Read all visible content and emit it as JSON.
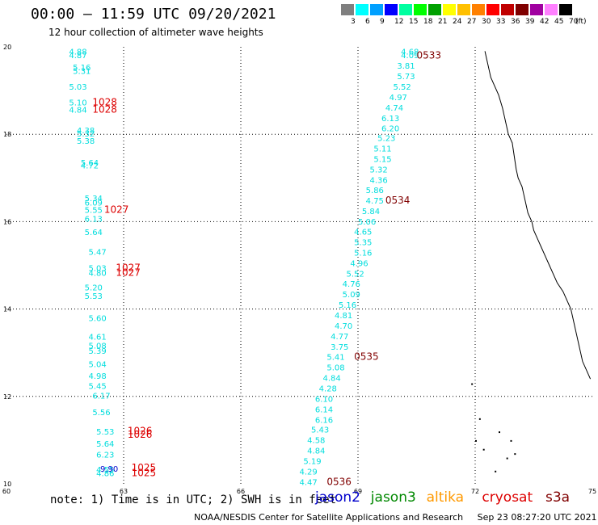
{
  "header": {
    "title": "00:00 – 11:59 UTC 09/20/2021",
    "subtitle": "12 hour collection of altimeter wave heights"
  },
  "color_scale": {
    "unit": "(ft)",
    "labels": [
      "3",
      "6",
      "9",
      "12",
      "15",
      "18",
      "21",
      "24",
      "27",
      "30",
      "33",
      "36",
      "39",
      "42",
      "45",
      "70"
    ],
    "colors": [
      "#7f7f7f",
      "#00ffff",
      "#00a0ff",
      "#0000ff",
      "#00ffa0",
      "#00ff00",
      "#00a000",
      "#ffff00",
      "#ffc000",
      "#ff8000",
      "#ff0000",
      "#c00000",
      "#800000",
      "#a000a0",
      "#ff80ff",
      "#000000"
    ]
  },
  "map": {
    "lon_ticks": [
      "60",
      "63",
      "66",
      "69",
      "72",
      "75"
    ],
    "lat_ticks": [
      "20",
      "18",
      "16",
      "14",
      "12",
      "10"
    ],
    "bounds": {
      "lon": [
        60,
        75
      ],
      "lat": [
        10,
        20
      ]
    }
  },
  "tracks": [
    {
      "satellite": "cryosat",
      "color": "#00dddd",
      "labels_color": "#dd0000",
      "points": [
        {
          "lon": 61.6,
          "lat": 19.82,
          "swh": "4.88"
        },
        {
          "lon": 61.6,
          "lat": 19.74,
          "swh": "4.87"
        },
        {
          "lon": 61.7,
          "lat": 19.46,
          "swh": "5.16"
        },
        {
          "lon": 61.7,
          "lat": 19.38,
          "swh": "5.31"
        },
        {
          "lon": 61.6,
          "lat": 19.02,
          "swh": "5.03"
        },
        {
          "lon": 61.6,
          "lat": 18.66,
          "swh": "5.10"
        },
        {
          "lon": 61.6,
          "lat": 18.49,
          "swh": "4.84"
        },
        {
          "lon": 61.8,
          "lat": 18.02,
          "swh": "4.38"
        },
        {
          "lon": 61.8,
          "lat": 17.95,
          "swh": "5.32"
        },
        {
          "lon": 61.8,
          "lat": 17.78,
          "swh": "5.38"
        },
        {
          "lon": 61.9,
          "lat": 17.28,
          "swh": "5.64"
        },
        {
          "lon": 61.9,
          "lat": 17.22,
          "swh": "4.72"
        },
        {
          "lon": 62.0,
          "lat": 16.47,
          "swh": "5.34"
        },
        {
          "lon": 62.0,
          "lat": 16.37,
          "swh": "6.09"
        },
        {
          "lon": 62.0,
          "lat": 16.2,
          "swh": "5.55"
        },
        {
          "lon": 62.0,
          "lat": 16.0,
          "swh": "6.13"
        },
        {
          "lon": 62.0,
          "lat": 15.69,
          "swh": "5.64"
        },
        {
          "lon": 62.1,
          "lat": 15.24,
          "swh": "5.47"
        },
        {
          "lon": 62.1,
          "lat": 14.87,
          "swh": "5.03"
        },
        {
          "lon": 62.1,
          "lat": 14.76,
          "swh": "4.80"
        },
        {
          "lon": 62.0,
          "lat": 14.43,
          "swh": "5.20"
        },
        {
          "lon": 62.0,
          "lat": 14.23,
          "swh": "5.53"
        },
        {
          "lon": 62.1,
          "lat": 13.72,
          "swh": "5.60"
        },
        {
          "lon": 62.1,
          "lat": 13.3,
          "swh": "4.61"
        },
        {
          "lon": 62.1,
          "lat": 13.1,
          "swh": "5.08"
        },
        {
          "lon": 62.1,
          "lat": 12.98,
          "swh": "5.39"
        },
        {
          "lon": 62.1,
          "lat": 12.67,
          "swh": "5.04"
        },
        {
          "lon": 62.1,
          "lat": 12.4,
          "swh": "4.98"
        },
        {
          "lon": 62.1,
          "lat": 12.17,
          "swh": "5.45"
        },
        {
          "lon": 62.2,
          "lat": 11.95,
          "swh": "6.17"
        },
        {
          "lon": 62.2,
          "lat": 11.57,
          "swh": "5.56"
        },
        {
          "lon": 62.3,
          "lat": 11.13,
          "swh": "5.53"
        },
        {
          "lon": 62.3,
          "lat": 10.85,
          "swh": "5.64"
        },
        {
          "lon": 62.3,
          "lat": 10.6,
          "swh": "6.23"
        },
        {
          "lon": 62.3,
          "lat": 10.26,
          "swh": "4.55"
        },
        {
          "lon": 62.3,
          "lat": 10.18,
          "swh": "4.86"
        }
      ],
      "time_labels": [
        {
          "lon": 62.2,
          "lat": 18.66,
          "text": "1028"
        },
        {
          "lon": 62.2,
          "lat": 18.49,
          "text": "1028"
        },
        {
          "lon": 62.5,
          "lat": 16.2,
          "text": "1027"
        },
        {
          "lon": 62.8,
          "lat": 14.87,
          "text": "1027"
        },
        {
          "lon": 62.8,
          "lat": 14.76,
          "text": "1027"
        },
        {
          "lon": 63.1,
          "lat": 11.14,
          "text": "1026"
        },
        {
          "lon": 63.1,
          "lat": 11.05,
          "text": "1026"
        },
        {
          "lon": 63.2,
          "lat": 10.3,
          "text": "1025"
        },
        {
          "lon": 63.2,
          "lat": 10.18,
          "text": "1025"
        }
      ]
    },
    {
      "satellite": "s3a",
      "color": "#00dddd",
      "labels_color": "#800000",
      "points": [
        {
          "lon": 70.1,
          "lat": 19.82,
          "swh": "4.68"
        },
        {
          "lon": 70.1,
          "lat": 19.74,
          "swh": "4.09"
        },
        {
          "lon": 70.0,
          "lat": 19.5,
          "swh": "3.81"
        },
        {
          "lon": 70.0,
          "lat": 19.26,
          "swh": "5.73"
        },
        {
          "lon": 69.9,
          "lat": 19.02,
          "swh": "5.52"
        },
        {
          "lon": 69.8,
          "lat": 18.78,
          "swh": "4.97"
        },
        {
          "lon": 69.7,
          "lat": 18.54,
          "swh": "4.74"
        },
        {
          "lon": 69.6,
          "lat": 18.3,
          "swh": "6.13"
        },
        {
          "lon": 69.6,
          "lat": 18.07,
          "swh": "6.20"
        },
        {
          "lon": 69.5,
          "lat": 17.85,
          "swh": "5.23"
        },
        {
          "lon": 69.4,
          "lat": 17.61,
          "swh": "5.11"
        },
        {
          "lon": 69.4,
          "lat": 17.37,
          "swh": "5.15"
        },
        {
          "lon": 69.3,
          "lat": 17.13,
          "swh": "5.32"
        },
        {
          "lon": 69.3,
          "lat": 16.89,
          "swh": "4.36"
        },
        {
          "lon": 69.2,
          "lat": 16.65,
          "swh": "5.86"
        },
        {
          "lon": 69.2,
          "lat": 16.41,
          "swh": "4.75"
        },
        {
          "lon": 69.1,
          "lat": 16.17,
          "swh": "5.84"
        },
        {
          "lon": 69.0,
          "lat": 15.93,
          "swh": "5.06"
        },
        {
          "lon": 68.9,
          "lat": 15.7,
          "swh": "4.65"
        },
        {
          "lon": 68.9,
          "lat": 15.46,
          "swh": "5.35"
        },
        {
          "lon": 68.9,
          "lat": 15.22,
          "swh": "5.16"
        },
        {
          "lon": 68.8,
          "lat": 14.98,
          "swh": "4.96"
        },
        {
          "lon": 68.7,
          "lat": 14.74,
          "swh": "5.52"
        },
        {
          "lon": 68.6,
          "lat": 14.51,
          "swh": "4.76"
        },
        {
          "lon": 68.6,
          "lat": 14.27,
          "swh": "5.09"
        },
        {
          "lon": 68.5,
          "lat": 14.03,
          "swh": "5.16"
        },
        {
          "lon": 68.4,
          "lat": 13.79,
          "swh": "4.81"
        },
        {
          "lon": 68.4,
          "lat": 13.55,
          "swh": "4.70"
        },
        {
          "lon": 68.3,
          "lat": 13.31,
          "swh": "4.77"
        },
        {
          "lon": 68.3,
          "lat": 13.07,
          "swh": "3.75"
        },
        {
          "lon": 68.2,
          "lat": 12.84,
          "swh": "5.41"
        },
        {
          "lon": 68.2,
          "lat": 12.6,
          "swh": "5.08"
        },
        {
          "lon": 68.1,
          "lat": 12.36,
          "swh": "4.84"
        },
        {
          "lon": 68.0,
          "lat": 12.12,
          "swh": "4.28"
        },
        {
          "lon": 67.9,
          "lat": 11.88,
          "swh": "6.10"
        },
        {
          "lon": 67.9,
          "lat": 11.64,
          "swh": "6.14"
        },
        {
          "lon": 67.9,
          "lat": 11.4,
          "swh": "6.16"
        },
        {
          "lon": 67.8,
          "lat": 11.17,
          "swh": "5.43"
        },
        {
          "lon": 67.7,
          "lat": 10.93,
          "swh": "4.58"
        },
        {
          "lon": 67.7,
          "lat": 10.69,
          "swh": "4.84"
        },
        {
          "lon": 67.6,
          "lat": 10.45,
          "swh": "5.19"
        },
        {
          "lon": 67.5,
          "lat": 10.21,
          "swh": "4.29"
        },
        {
          "lon": 67.5,
          "lat": 9.97,
          "swh": "4.47"
        }
      ],
      "time_labels": [
        {
          "lon": 70.5,
          "lat": 19.73,
          "text": "0533"
        },
        {
          "lon": 69.7,
          "lat": 16.41,
          "text": "0534"
        },
        {
          "lon": 68.9,
          "lat": 12.84,
          "text": "0535"
        },
        {
          "lon": 68.2,
          "lat": 9.97,
          "text": "0536"
        }
      ]
    },
    {
      "satellite": "jason2",
      "color": "#0000cc",
      "labels_color": "#dd0000",
      "points": [
        {
          "lon": 62.4,
          "lat": 10.28,
          "swh": "9.90"
        }
      ],
      "time_labels": []
    }
  ],
  "coastline_color": "#000000",
  "footer": {
    "note": "note: 1) Time is in UTC; 2) SWH is in feet",
    "satellites": [
      {
        "name": "jason2",
        "color": "#0000cc"
      },
      {
        "name": "jason3",
        "color": "#008800"
      },
      {
        "name": "altika",
        "color": "#ff9900"
      },
      {
        "name": "cryosat",
        "color": "#dd0000"
      },
      {
        "name": "s3a",
        "color": "#800000"
      }
    ],
    "credit": "NOAA/NESDIS Center for Satellite Applications and Research",
    "timestamp": "Sep 23 08:27:20 UTC 2021"
  }
}
